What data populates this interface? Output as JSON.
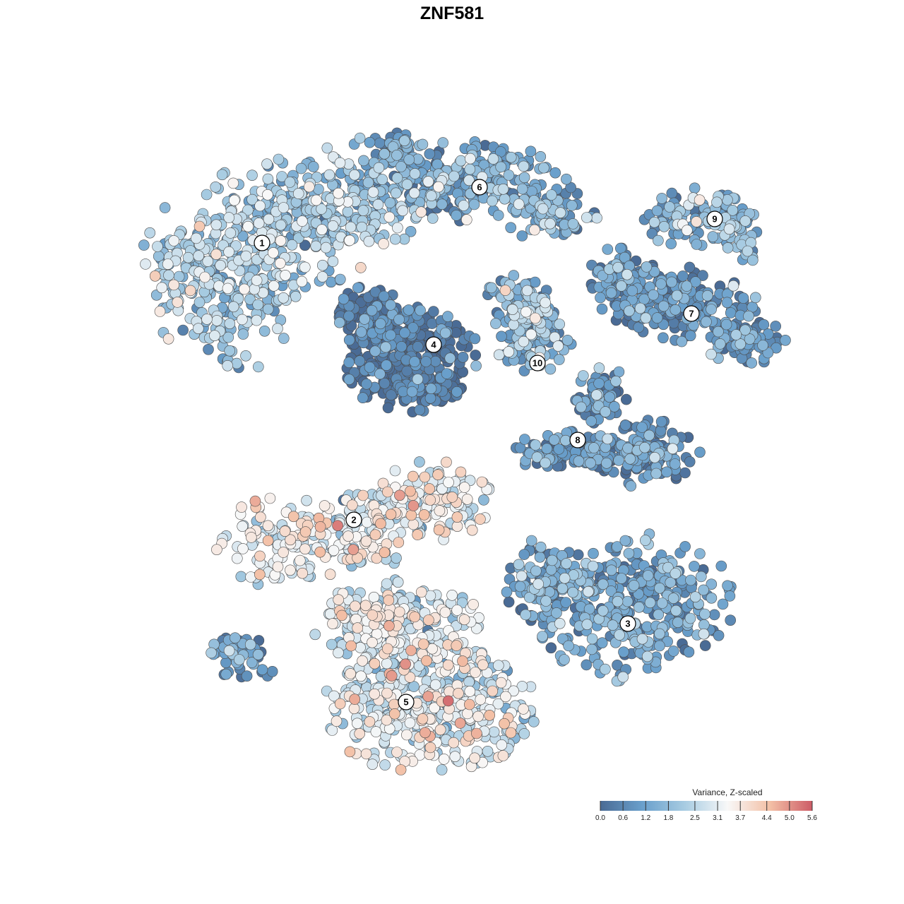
{
  "chart_data": {
    "type": "scatter",
    "title": "ZNF581",
    "colorbar": {
      "title": "Variance, Z-scaled",
      "ticks": [
        0.0,
        0.6,
        1.2,
        1.8,
        2.5,
        3.1,
        3.7,
        4.4,
        5.0,
        5.6
      ],
      "tick_labels": [
        "0.0",
        "0.6",
        "1.2",
        "1.8",
        "2.5",
        "3.1",
        "3.7",
        "4.4",
        "5.0",
        "5.6"
      ],
      "range": [
        0,
        5.6
      ],
      "colors": [
        "#4A6B95",
        "#6AA0CC",
        "#A8CCE2",
        "#F8F8F8",
        "#F3C0A6",
        "#CD5C66"
      ],
      "placement": "bottom-right"
    },
    "clusters": [
      {
        "label": "1",
        "mean_value": 2.1
      },
      {
        "label": "2",
        "mean_value": 3.1
      },
      {
        "label": "3",
        "mean_value": 1.1
      },
      {
        "label": "4",
        "mean_value": 0.1
      },
      {
        "label": "5",
        "mean_value": 2.9
      },
      {
        "label": "6",
        "mean_value": 1.3
      },
      {
        "label": "7",
        "mean_value": 0.8
      },
      {
        "label": "8",
        "mean_value": 0.8
      },
      {
        "label": "9",
        "mean_value": 1.4
      },
      {
        "label": "10",
        "mean_value": 1.5
      }
    ]
  }
}
